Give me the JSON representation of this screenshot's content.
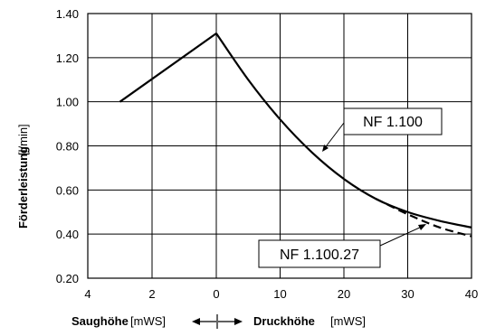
{
  "chart_data": {
    "type": "line",
    "ylabel_main": "Förderleistung",
    "ylabel_unit": "[l/min]",
    "xlabel_left_main": "Saughöhe",
    "xlabel_left_unit": "[mWS]",
    "xlabel_right_main": "Druckhöhe",
    "xlabel_right_unit": "[mWS]",
    "ylim": [
      0.2,
      1.4
    ],
    "y_ticks": [
      "0.20",
      "0.40",
      "0.60",
      "0.80",
      "1.00",
      "1.20",
      "1.40"
    ],
    "x_ticks": [
      "4",
      "2",
      "0",
      "10",
      "20",
      "30",
      "40"
    ],
    "grid": true,
    "series": [
      {
        "name": "NF 1.100",
        "style": "solid",
        "suction_side": {
          "x": [
            3,
            0
          ],
          "y": [
            1.0,
            1.31
          ]
        },
        "pressure_side": {
          "x": [
            0,
            5,
            10,
            15,
            20,
            25,
            30,
            35,
            40
          ],
          "y": [
            1.31,
            1.1,
            0.92,
            0.77,
            0.65,
            0.56,
            0.5,
            0.46,
            0.43
          ]
        }
      },
      {
        "name": "NF 1.100.27",
        "style": "dashed",
        "pressure_side": {
          "x": [
            25,
            30,
            35,
            40
          ],
          "y": [
            0.56,
            0.49,
            0.43,
            0.39
          ]
        }
      }
    ]
  }
}
